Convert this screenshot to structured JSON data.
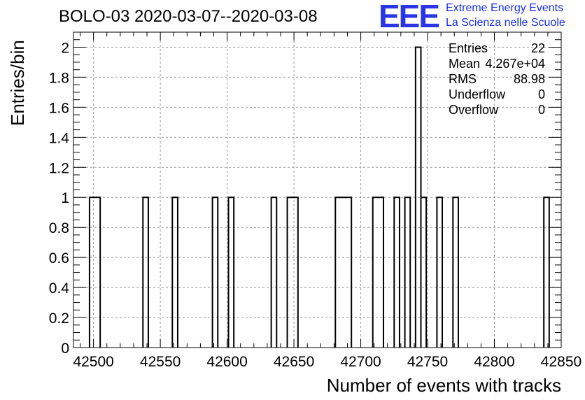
{
  "title": "BOLO-03 2020-03-07--2020-03-08",
  "logo": {
    "mark": "EEE",
    "line1": "Extreme Energy Events",
    "line2": "La Scienza nelle Scuole"
  },
  "colors": {
    "logo": "#2a35e8",
    "hist": "#000000",
    "grid": "#999999"
  },
  "stats": [
    {
      "label": "Entries",
      "value": "22"
    },
    {
      "label": "Mean",
      "value": "4.267e+04"
    },
    {
      "label": "RMS",
      "value": "88.98"
    },
    {
      "label": "Underflow",
      "value": "0"
    },
    {
      "label": "Overflow",
      "value": "0"
    }
  ],
  "chart_data": {
    "type": "bar",
    "xlabel": "Number of events with tracks",
    "ylabel": "Entries/bin",
    "xlim": [
      42485,
      42850
    ],
    "ylim": [
      0,
      2.1
    ],
    "grid": true,
    "x_ticks": [
      42500,
      42550,
      42600,
      42650,
      42700,
      42750,
      42800,
      42850
    ],
    "y_ticks": [
      0,
      0.2,
      0.4,
      0.6,
      0.8,
      1,
      1.2,
      1.4,
      1.6,
      1.8,
      2
    ],
    "y_tick_labels": [
      "0",
      "0.2",
      "0.4",
      "0.6",
      "0.8",
      "1",
      "1.2",
      "1.4",
      "1.6",
      "1.8",
      "2"
    ],
    "bins": [
      {
        "x0": 42497,
        "x1": 42505,
        "count": 1
      },
      {
        "x0": 42537,
        "x1": 42541,
        "count": 1
      },
      {
        "x0": 42559,
        "x1": 42563,
        "count": 1
      },
      {
        "x0": 42589,
        "x1": 42593,
        "count": 1
      },
      {
        "x0": 42601,
        "x1": 42605,
        "count": 1
      },
      {
        "x0": 42633,
        "x1": 42637,
        "count": 1
      },
      {
        "x0": 42645,
        "x1": 42653,
        "count": 1
      },
      {
        "x0": 42681,
        "x1": 42693,
        "count": 1
      },
      {
        "x0": 42709,
        "x1": 42717,
        "count": 1
      },
      {
        "x0": 42725,
        "x1": 42729,
        "count": 1
      },
      {
        "x0": 42733,
        "x1": 42737,
        "count": 1
      },
      {
        "x0": 42741,
        "x1": 42745,
        "count": 2
      },
      {
        "x0": 42745,
        "x1": 42749,
        "count": 1
      },
      {
        "x0": 42757,
        "x1": 42761,
        "count": 1
      },
      {
        "x0": 42769,
        "x1": 42773,
        "count": 1
      },
      {
        "x0": 42837,
        "x1": 42841,
        "count": 1
      }
    ]
  }
}
